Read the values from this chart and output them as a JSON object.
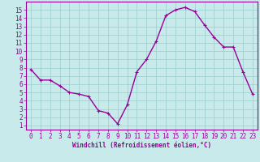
{
  "x": [
    0,
    1,
    2,
    3,
    4,
    5,
    6,
    7,
    8,
    9,
    10,
    11,
    12,
    13,
    14,
    15,
    16,
    17,
    18,
    19,
    20,
    21,
    22,
    23
  ],
  "y": [
    7.8,
    6.5,
    6.5,
    5.8,
    5.0,
    4.8,
    4.5,
    2.8,
    2.5,
    1.2,
    3.5,
    7.5,
    9.0,
    11.2,
    14.3,
    15.0,
    15.3,
    14.8,
    13.2,
    11.7,
    10.5,
    10.5,
    7.5,
    4.8
  ],
  "line_color": "#990099",
  "marker": "+",
  "marker_size": 3,
  "background_color": "#c8eaea",
  "grid_color": "#99cccc",
  "xlabel": "Windchill (Refroidissement éolien,°C)",
  "xlabel_color": "#990099",
  "xlabel_fontsize": 5.5,
  "ylabel_ticks": [
    1,
    2,
    3,
    4,
    5,
    6,
    7,
    8,
    9,
    10,
    11,
    12,
    13,
    14,
    15
  ],
  "xlim": [
    -0.5,
    23.5
  ],
  "ylim": [
    0.5,
    16.0
  ],
  "tick_fontsize": 5.5,
  "tick_color": "#990099",
  "spine_color": "#990099",
  "linewidth": 1.0,
  "markeredgewidth": 0.8
}
